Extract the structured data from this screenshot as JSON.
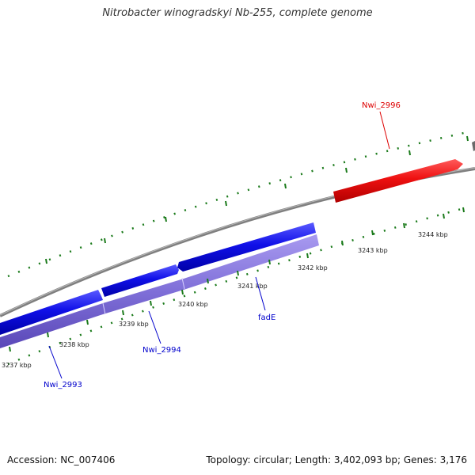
{
  "title": "Nitrobacter winogradskyi Nb-255, complete genome",
  "footer": {
    "accession": "Accession: NC_007406",
    "stats": "Topology: circular; Length: 3,402,093 bp; Genes: 3,176"
  },
  "ticks": [
    {
      "label": "3237 kbp"
    },
    {
      "label": "3238 kbp"
    },
    {
      "label": "3239 kbp"
    },
    {
      "label": "3240 kbp"
    },
    {
      "label": "3241 kbp"
    },
    {
      "label": "3242 kbp"
    },
    {
      "label": "3243 kbp"
    },
    {
      "label": "3244 kbp"
    }
  ],
  "genes": [
    {
      "label": "Nwi_2993",
      "color": "#0000cc"
    },
    {
      "label": "Nwi_2994",
      "color": "#0000cc"
    },
    {
      "label": "fadE",
      "color": "#0000cc"
    },
    {
      "label": "Nwi_2996",
      "color": "#dd0000"
    }
  ],
  "colors": {
    "backbone": "#7f7f7f",
    "forward_gene": "#1a1aee",
    "reverse_gene": "#7f6fd8",
    "forward_highlight": "#dd0000",
    "tick": "#1a7a1a"
  }
}
